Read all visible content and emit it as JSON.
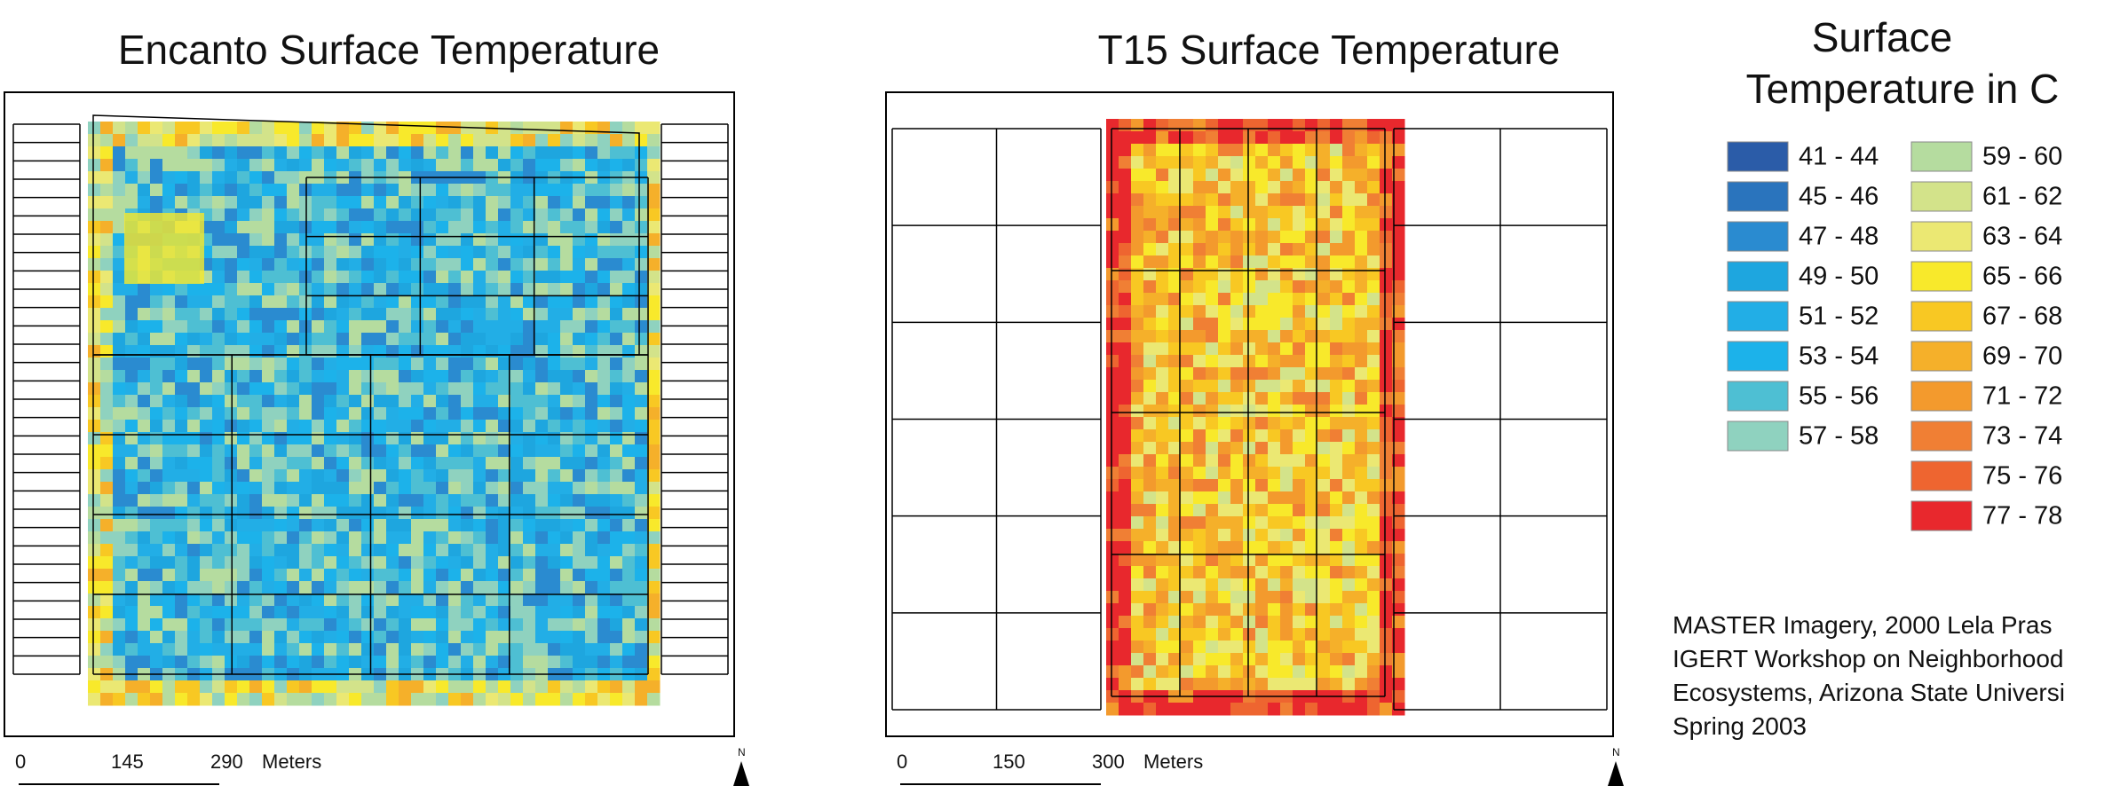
{
  "maps": [
    {
      "title": "Encanto Surface Temperature",
      "scale_labels": [
        "0",
        "145",
        "290",
        "Meters"
      ]
    },
    {
      "title": "T15 Surface Temperature",
      "scale_labels": [
        "0",
        "150",
        "300",
        "Meters"
      ]
    }
  ],
  "north": "N",
  "legend": {
    "title_line1": "Surface",
    "title_line2": "Temperature in C",
    "items": [
      {
        "label": "41 - 44",
        "color": "#2b5ca8"
      },
      {
        "label": "45 - 46",
        "color": "#2a74bd"
      },
      {
        "label": "47 - 48",
        "color": "#2a8bd0"
      },
      {
        "label": "49 - 50",
        "color": "#1ea6df"
      },
      {
        "label": "51 - 52",
        "color": "#22aee6"
      },
      {
        "label": "53 - 54",
        "color": "#1cb2ea"
      },
      {
        "label": "55 - 56",
        "color": "#4ebfd3"
      },
      {
        "label": "57 - 58",
        "color": "#8fd2bf"
      },
      {
        "label": "59 - 60",
        "color": "#b5dc9f"
      },
      {
        "label": "61 - 62",
        "color": "#d3e38a"
      },
      {
        "label": "63 - 64",
        "color": "#ebe873"
      },
      {
        "label": "65 - 66",
        "color": "#f8e92b"
      },
      {
        "label": "67 - 68",
        "color": "#f8c823"
      },
      {
        "label": "69 - 70",
        "color": "#f5b02a"
      },
      {
        "label": "71 - 72",
        "color": "#f39a2d"
      },
      {
        "label": "73 - 74",
        "color": "#f07f34"
      },
      {
        "label": "75 - 76",
        "color": "#ee6530"
      },
      {
        "label": "77 - 78",
        "color": "#e8282d"
      }
    ]
  },
  "credits": [
    "MASTER Imagery,  2000  Lela Pras",
    "IGERT Workshop on Neighborhood",
    "Ecosystems, Arizona State Universi",
    "Spring 2003"
  ]
}
